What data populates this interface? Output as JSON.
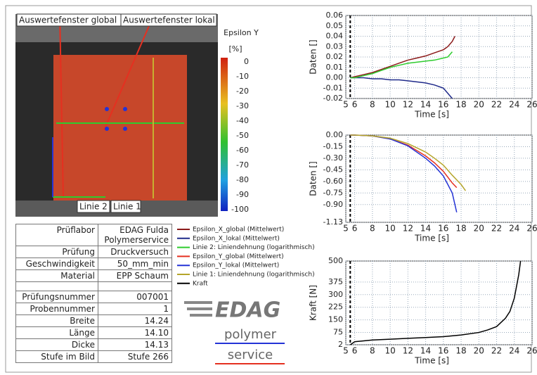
{
  "image": {
    "labels": [
      "Auswertefenster global",
      "Auswertefenster lokal",
      "Linie 2",
      "Linie 1"
    ],
    "colorbar": {
      "title": "Epsilon Y",
      "unit": "[%]",
      "ticks": [
        0,
        -10,
        -20,
        -30,
        -40,
        -50,
        -60,
        -70,
        -80,
        -90,
        -100
      ]
    }
  },
  "table": {
    "rows": [
      [
        "Prüflabor",
        "EDAG Fulda Polymerservice"
      ],
      [
        "Prüfung",
        "Druckversuch"
      ],
      [
        "Geschwindigkeit",
        "50_mm_min"
      ],
      [
        "Material",
        "EPP Schaum"
      ],
      [
        "Prüfungsnummer",
        "007001"
      ],
      [
        "Probennummer",
        "1"
      ],
      [
        "Breite",
        "14.24"
      ],
      [
        "Länge",
        "14.10"
      ],
      [
        "Dicke",
        "14.13"
      ],
      [
        "Stufe im Bild",
        "Stufe 266"
      ]
    ]
  },
  "logo": {
    "brand": "EDAG",
    "line1": "polymer",
    "line2": "service"
  },
  "chart_data": [
    {
      "type": "line",
      "xlabel": "Time [s]",
      "ylabel": "Daten []",
      "grid": true,
      "vline_x": 5.5,
      "x": [
        5.5,
        6,
        7,
        8,
        9,
        10,
        11,
        12,
        13,
        14,
        15,
        16,
        16.5,
        17,
        17.3
      ],
      "xlim": [
        5,
        26
      ],
      "xticks": [
        5,
        6,
        8,
        10,
        12,
        14,
        16,
        18,
        20,
        22,
        24,
        26
      ],
      "ylim": [
        -0.02,
        0.06
      ],
      "yticks": [
        -0.02,
        -0.01,
        {
          "value": 0,
          "label": "0.00"
        },
        0.01,
        0.02,
        0.03,
        0.04,
        0.05,
        0.06
      ],
      "series": [
        {
          "name": "Epsilon_X_global (Mittelwert)",
          "color": "#8b1a1a",
          "values": [
            0,
            0.001,
            0.003,
            0.005,
            0.008,
            0.011,
            0.014,
            0.017,
            0.019,
            0.021,
            0.024,
            0.027,
            0.03,
            0.035,
            0.04
          ]
        },
        {
          "name": "Epsilon_X_lokal (Mittelwert)",
          "color": "#1f2a8a",
          "values": [
            0,
            0,
            0,
            -0.001,
            -0.001,
            -0.002,
            -0.002,
            -0.003,
            -0.004,
            -0.005,
            -0.007,
            -0.01,
            -0.015,
            -0.02,
            null
          ]
        },
        {
          "name": "Linie 2: Liniendehnung (logarithmisch)",
          "color": "#2ecc2e",
          "values": [
            0,
            0,
            0.002,
            0.004,
            0.007,
            0.01,
            0.012,
            0.014,
            0.015,
            0.016,
            0.017,
            0.019,
            0.02,
            0.025,
            null
          ]
        }
      ]
    },
    {
      "type": "line",
      "xlabel": "Time [s]",
      "ylabel": "Daten []",
      "grid": true,
      "vline_x": 5.5,
      "x": [
        5.5,
        6,
        8,
        10,
        12,
        14,
        15,
        16,
        17,
        17.5,
        18,
        18.5
      ],
      "xlim": [
        5,
        26
      ],
      "xticks": [
        5,
        6,
        8,
        10,
        12,
        14,
        16,
        18,
        20,
        22,
        24,
        26
      ],
      "ylim": [
        -1.13,
        0
      ],
      "yticks": [
        {
          "value": 0,
          "label": "0.00"
        },
        -0.15,
        {
          "value": -0.3,
          "label": "-0.30"
        },
        -0.45,
        {
          "value": -0.6,
          "label": "-0.60"
        },
        -0.75,
        {
          "value": -0.9,
          "label": "-0.90"
        },
        -1.13
      ],
      "series": [
        {
          "name": "Epsilon_Y_global (Mittelwert)",
          "color": "#e53020",
          "values": [
            0,
            0,
            -0.01,
            -0.05,
            -0.13,
            -0.27,
            -0.36,
            -0.47,
            -0.62,
            -0.68,
            null,
            null
          ]
        },
        {
          "name": "Epsilon_Y_lokal (Mittelwert)",
          "color": "#2433d6",
          "values": [
            0,
            0,
            -0.01,
            -0.05,
            -0.14,
            -0.3,
            -0.4,
            -0.53,
            -0.75,
            -1.0,
            null,
            null
          ]
        },
        {
          "name": "Linie 1: Liniendehnung (logarithmisch)",
          "color": "#b5a52a",
          "values": [
            0,
            0,
            -0.01,
            -0.04,
            -0.11,
            -0.22,
            -0.3,
            -0.39,
            -0.52,
            -0.58,
            -0.64,
            -0.72
          ]
        }
      ]
    },
    {
      "type": "line",
      "xlabel": "Time [s]",
      "ylabel": "Kraft [N]",
      "grid": true,
      "vline_x": 5.5,
      "x": [
        5.5,
        6,
        7,
        8,
        10,
        12,
        14,
        16,
        18,
        20,
        21,
        22,
        23,
        23.5,
        24,
        24.5,
        24.7
      ],
      "xlim": [
        5,
        26
      ],
      "xticks": [
        5,
        6,
        8,
        10,
        12,
        14,
        16,
        18,
        20,
        22,
        24,
        26
      ],
      "ylim": [
        2,
        500
      ],
      "yticks": [
        2,
        75,
        150,
        225,
        300,
        375,
        500
      ],
      "series": [
        {
          "name": "Kraft",
          "color": "#000000",
          "values": [
            2,
            20,
            25,
            30,
            35,
            40,
            45,
            50,
            60,
            75,
            90,
            110,
            160,
            200,
            280,
            420,
            500
          ]
        }
      ]
    }
  ]
}
